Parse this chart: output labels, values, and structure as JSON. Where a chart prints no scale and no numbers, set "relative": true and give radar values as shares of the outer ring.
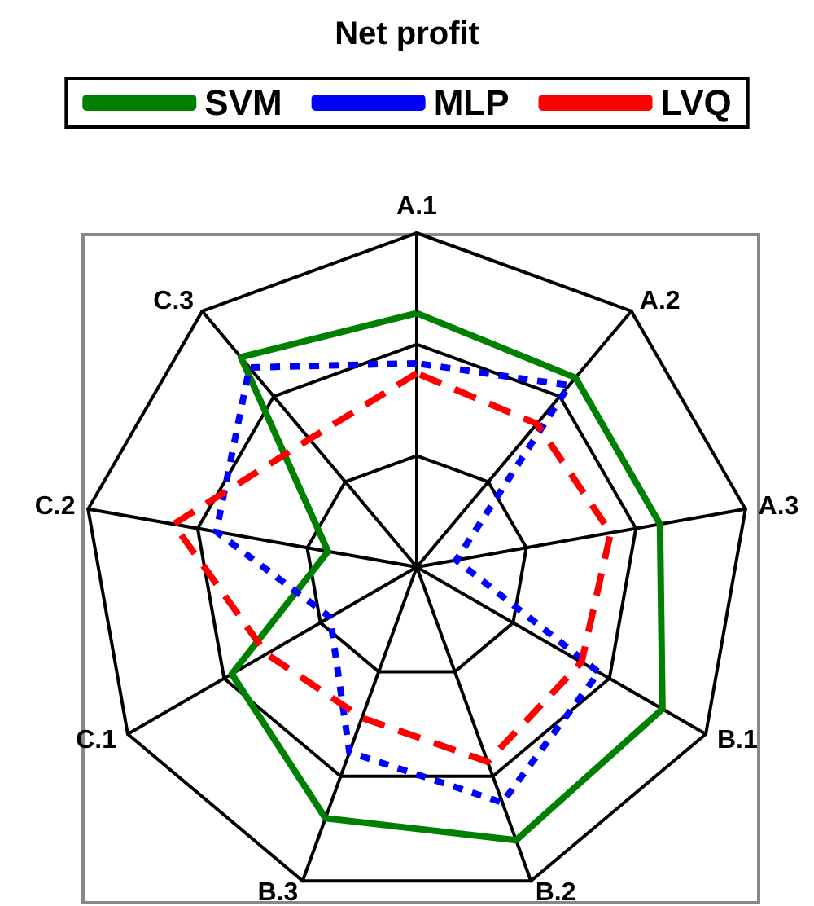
{
  "chart_data": {
    "type": "radar",
    "title": "Net profit",
    "relative": true,
    "legend": "top",
    "marker": "none",
    "categories": [
      "A.1",
      "A.2",
      "A.3",
      "B.1",
      "B.2",
      "B.3",
      "C.1",
      "C.2",
      "C.3"
    ],
    "series": [
      {
        "name": "SVM",
        "color": "#008000",
        "line_style": "solid",
        "values": [
          0.76,
          0.74,
          0.74,
          0.85,
          0.87,
          0.8,
          0.64,
          0.27,
          0.82
        ]
      },
      {
        "name": "MLP",
        "color": "#0000ff",
        "line_style": "dotted",
        "values": [
          0.61,
          0.71,
          0.12,
          0.63,
          0.75,
          0.59,
          0.3,
          0.61,
          0.78
        ]
      },
      {
        "name": "LVQ",
        "color": "#ff0000",
        "line_style": "dashed",
        "values": [
          0.58,
          0.56,
          0.59,
          0.57,
          0.62,
          0.48,
          0.52,
          0.74,
          0.5
        ]
      }
    ]
  }
}
